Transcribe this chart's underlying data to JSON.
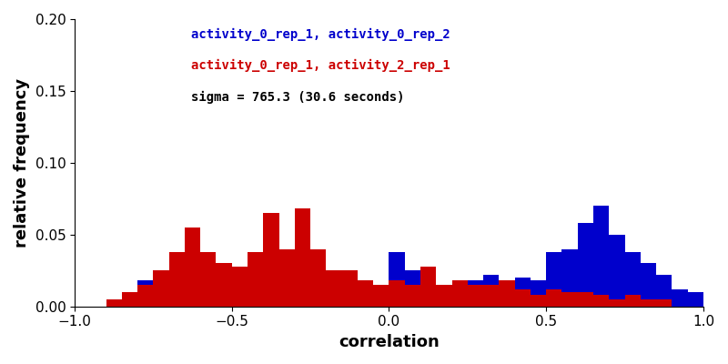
{
  "xlabel": "correlation",
  "ylabel": "relative frequency",
  "xlim": [
    -1,
    1
  ],
  "ylim": [
    0,
    0.2
  ],
  "yticks": [
    0,
    0.05,
    0.1,
    0.15,
    0.2
  ],
  "xticks": [
    -1,
    -0.5,
    0,
    0.5,
    1
  ],
  "blue_label": "activity_0_rep_1, activity_0_rep_2",
  "red_label": "activity_0_rep_1, activity_2_rep_1",
  "sigma_label": "sigma = 765.3 (30.6 seconds)",
  "blue_color": "#0000cc",
  "red_color": "#cc0000",
  "background_color": "#ffffff",
  "legend_fontsize": 10,
  "axis_label_fontsize": 13,
  "tick_fontsize": 11,
  "blue_hist_values": [
    0.0,
    0.0,
    0.0,
    0.0,
    0.018,
    0.015,
    0.0,
    0.008,
    0.01,
    0.0,
    0.0,
    0.0,
    0.008,
    0.0,
    0.01,
    0.0,
    0.0,
    0.005,
    0.01,
    0.01,
    0.038,
    0.025,
    0.02,
    0.015,
    0.01,
    0.018,
    0.022,
    0.015,
    0.02,
    0.018,
    0.038,
    0.04,
    0.058,
    0.07,
    0.05,
    0.038,
    0.03,
    0.022,
    0.012,
    0.01
  ],
  "red_hist_values": [
    0.0,
    0.0,
    0.005,
    0.01,
    0.015,
    0.025,
    0.038,
    0.055,
    0.038,
    0.03,
    0.028,
    0.038,
    0.065,
    0.04,
    0.068,
    0.04,
    0.025,
    0.025,
    0.018,
    0.015,
    0.018,
    0.015,
    0.028,
    0.015,
    0.018,
    0.015,
    0.015,
    0.018,
    0.012,
    0.008,
    0.012,
    0.01,
    0.01,
    0.008,
    0.005,
    0.008,
    0.005,
    0.005,
    0.0,
    0.0
  ],
  "bin_edges": [
    -1.0,
    -0.95,
    -0.9,
    -0.85,
    -0.8,
    -0.75,
    -0.7,
    -0.65,
    -0.6,
    -0.55,
    -0.5,
    -0.45,
    -0.4,
    -0.35,
    -0.3,
    -0.25,
    -0.2,
    -0.15,
    -0.1,
    -0.05,
    0.0,
    0.05,
    0.1,
    0.15,
    0.2,
    0.25,
    0.3,
    0.35,
    0.4,
    0.45,
    0.5,
    0.55,
    0.6,
    0.65,
    0.7,
    0.75,
    0.8,
    0.85,
    0.9,
    0.95,
    1.0
  ]
}
